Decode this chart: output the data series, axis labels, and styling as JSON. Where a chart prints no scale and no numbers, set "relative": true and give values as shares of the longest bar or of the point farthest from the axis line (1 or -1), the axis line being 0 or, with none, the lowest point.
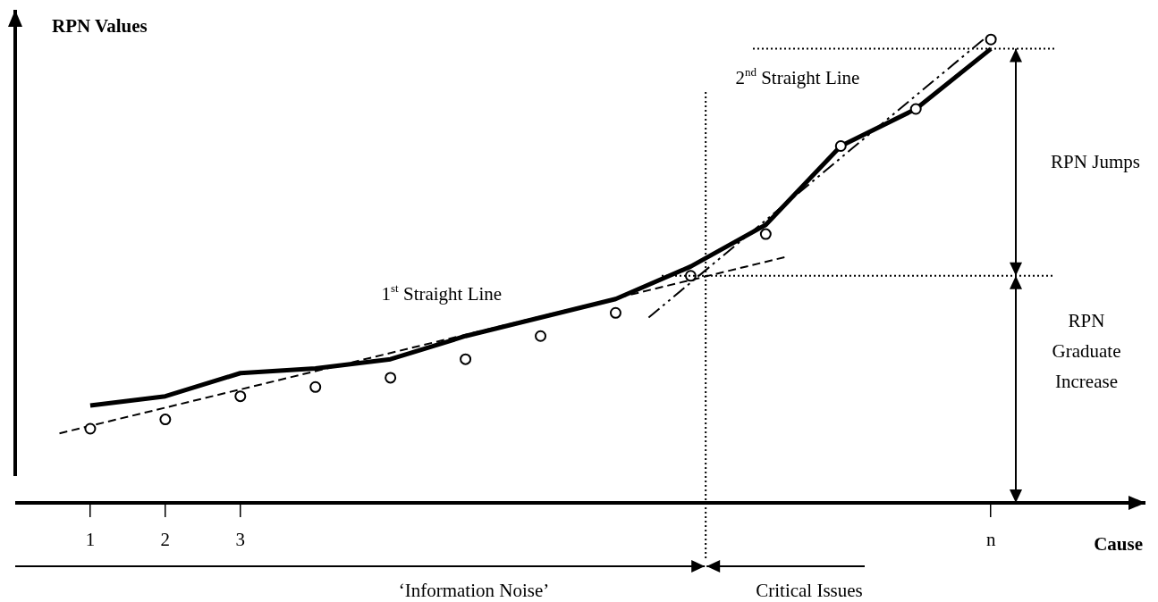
{
  "chart_data": {
    "type": "line",
    "xlabel": "Cause",
    "ylabel": "RPN Values",
    "relative": true,
    "grid": false,
    "xlim": [
      0,
      15
    ],
    "xticks": [
      {
        "value": 1,
        "label": "1"
      },
      {
        "value": 2,
        "label": "2"
      },
      {
        "value": 3,
        "label": "3"
      },
      {
        "value": 13,
        "label": "n"
      }
    ],
    "series": [
      {
        "color": "#000000",
        "marker": "none",
        "x": [
          1,
          2,
          3,
          4,
          5,
          6,
          7,
          8,
          9,
          10,
          11,
          12,
          13
        ],
        "values": [
          0.21,
          0.23,
          0.28,
          0.29,
          0.31,
          0.36,
          0.4,
          0.44,
          0.51,
          0.6,
          0.77,
          0.85,
          0.98
        ]
      },
      {
        "type": "scatter",
        "color": "#000000",
        "marker": "circle",
        "x": [
          1,
          2,
          3,
          4,
          5,
          6,
          7,
          8,
          9,
          10,
          11,
          12,
          13
        ],
        "values": [
          0.16,
          0.18,
          0.23,
          0.25,
          0.27,
          0.31,
          0.36,
          0.41,
          0.49,
          0.58,
          0.77,
          0.85,
          1.0
        ]
      },
      {
        "type": "line",
        "name": "1$^{st}$ Straight Line",
        "color": "#000000",
        "marker": "none",
        "line_style": "dashed",
        "x": [
          0.59,
          10.25
        ],
        "values": [
          0.15,
          0.53
        ]
      },
      {
        "type": "line",
        "name": "2$^{nd}$ Straight Line",
        "color": "#000000",
        "marker": "none",
        "line_style": "dashed",
        "x": [
          8.44,
          12.9
        ],
        "values": [
          0.4,
          1.0
        ]
      }
    ],
    "ref_lines": [
      {
        "axis": "y",
        "value": 0.98,
        "line_style": "dotted",
        "color": "#000000"
      },
      {
        "axis": "y",
        "value": 0.49,
        "line_style": "dotted",
        "color": "#000000"
      },
      {
        "axis": "x",
        "value": 9.2,
        "line_style": "dotted",
        "color": "#000000"
      }
    ],
    "annotations": [
      "RPN Jumps",
      "RPN Graduate Increase",
      "‘Information Noise’",
      "Critical Issues"
    ]
  }
}
